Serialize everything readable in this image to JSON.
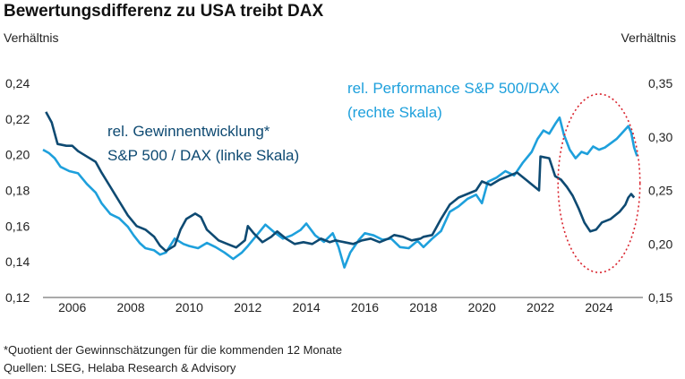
{
  "header": {
    "title": "Bewertungsdifferenz zu USA treibt DAX",
    "ylabel_left": "Verhältnis",
    "ylabel_right": "Verhältnis"
  },
  "footnotes": {
    "note": "*Quotient der Gewinnschätzungen für die kommenden 12 Monate",
    "source": "Quellen: LSEG, Helaba Research & Advisory"
  },
  "colors": {
    "earnings": "#0e4a72",
    "performance": "#1ea0dc",
    "ellipse": "#d9232d",
    "axis": "#555555"
  },
  "chart_data": {
    "type": "line",
    "y_left": {
      "range": [
        0.12,
        0.24
      ],
      "ticks": [
        "0,12",
        "0,14",
        "0,16",
        "0,18",
        "0,20",
        "0,22",
        "0,24"
      ]
    },
    "y_right": {
      "range": [
        0.15,
        0.35
      ],
      "ticks": [
        "0,15",
        "0,20",
        "0,25",
        "0,30",
        "0,35"
      ]
    },
    "x_range": [
      2005.0,
      2025.5
    ],
    "x_ticks": [
      {
        "x": 2006,
        "label": "2006"
      },
      {
        "x": 2008,
        "label": "2008"
      },
      {
        "x": 2010,
        "label": "2010"
      },
      {
        "x": 2012,
        "label": "2012"
      },
      {
        "x": 2014,
        "label": "2014"
      },
      {
        "x": 2016,
        "label": "2016"
      },
      {
        "x": 2018,
        "label": "2018"
      },
      {
        "x": 2020,
        "label": "2020"
      },
      {
        "x": 2022,
        "label": "2022"
      },
      {
        "x": 2024,
        "label": "2024"
      }
    ],
    "series": [
      {
        "name": "rel. Gewinnentwicklung* S&P 500 / DAX (linke Skala)",
        "label_lines": [
          "rel. Gewinnentwicklung*",
          "S&P 500 / DAX (linke Skala)"
        ],
        "axis": "left",
        "points": [
          [
            2005.1,
            0.224
          ],
          [
            2005.3,
            0.218
          ],
          [
            2005.5,
            0.206
          ],
          [
            2005.8,
            0.205
          ],
          [
            2006.0,
            0.205
          ],
          [
            2006.2,
            0.202
          ],
          [
            2006.5,
            0.199
          ],
          [
            2006.8,
            0.196
          ],
          [
            2007.0,
            0.19
          ],
          [
            2007.3,
            0.182
          ],
          [
            2007.6,
            0.174
          ],
          [
            2007.9,
            0.166
          ],
          [
            2008.2,
            0.16
          ],
          [
            2008.5,
            0.158
          ],
          [
            2008.8,
            0.154
          ],
          [
            2009.0,
            0.149
          ],
          [
            2009.2,
            0.146
          ],
          [
            2009.5,
            0.149
          ],
          [
            2009.7,
            0.158
          ],
          [
            2009.9,
            0.164
          ],
          [
            2010.2,
            0.167
          ],
          [
            2010.4,
            0.165
          ],
          [
            2010.6,
            0.158
          ],
          [
            2010.8,
            0.155
          ],
          [
            2011.0,
            0.152
          ],
          [
            2011.3,
            0.15
          ],
          [
            2011.6,
            0.148
          ],
          [
            2011.9,
            0.152
          ],
          [
            2012.0,
            0.16
          ],
          [
            2012.2,
            0.156
          ],
          [
            2012.5,
            0.151
          ],
          [
            2012.8,
            0.154
          ],
          [
            2013.0,
            0.157
          ],
          [
            2013.3,
            0.153
          ],
          [
            2013.6,
            0.15
          ],
          [
            2013.9,
            0.151
          ],
          [
            2014.2,
            0.15
          ],
          [
            2014.5,
            0.153
          ],
          [
            2014.8,
            0.151
          ],
          [
            2015.0,
            0.152
          ],
          [
            2015.3,
            0.151
          ],
          [
            2015.6,
            0.15
          ],
          [
            2015.9,
            0.152
          ],
          [
            2016.2,
            0.153
          ],
          [
            2016.5,
            0.151
          ],
          [
            2016.8,
            0.153
          ],
          [
            2017.0,
            0.155
          ],
          [
            2017.3,
            0.154
          ],
          [
            2017.6,
            0.152
          ],
          [
            2017.9,
            0.153
          ],
          [
            2018.0,
            0.154
          ],
          [
            2018.3,
            0.155
          ],
          [
            2018.6,
            0.164
          ],
          [
            2018.9,
            0.172
          ],
          [
            2019.2,
            0.176
          ],
          [
            2019.5,
            0.178
          ],
          [
            2019.8,
            0.18
          ],
          [
            2020.0,
            0.185
          ],
          [
            2020.3,
            0.183
          ],
          [
            2020.6,
            0.186
          ],
          [
            2020.9,
            0.188
          ],
          [
            2021.2,
            0.19
          ],
          [
            2021.5,
            0.186
          ],
          [
            2021.8,
            0.182
          ],
          [
            2021.95,
            0.18
          ],
          [
            2022.0,
            0.199
          ],
          [
            2022.3,
            0.198
          ],
          [
            2022.5,
            0.188
          ],
          [
            2022.7,
            0.186
          ],
          [
            2022.9,
            0.182
          ],
          [
            2023.1,
            0.177
          ],
          [
            2023.3,
            0.17
          ],
          [
            2023.5,
            0.162
          ],
          [
            2023.7,
            0.157
          ],
          [
            2023.9,
            0.158
          ],
          [
            2024.1,
            0.162
          ],
          [
            2024.4,
            0.164
          ],
          [
            2024.7,
            0.168
          ],
          [
            2024.9,
            0.172
          ],
          [
            2025.0,
            0.176
          ],
          [
            2025.1,
            0.178
          ],
          [
            2025.2,
            0.176
          ]
        ]
      },
      {
        "name": "rel. Performance S&P 500/DAX (rechte Skala)",
        "label_lines": [
          "rel. Performance S&P 500/DAX",
          "(rechte Skala)"
        ],
        "axis": "right",
        "points": [
          [
            2005.0,
            0.288
          ],
          [
            2005.2,
            0.285
          ],
          [
            2005.4,
            0.28
          ],
          [
            2005.6,
            0.272
          ],
          [
            2005.9,
            0.268
          ],
          [
            2006.2,
            0.266
          ],
          [
            2006.5,
            0.256
          ],
          [
            2006.8,
            0.248
          ],
          [
            2007.0,
            0.238
          ],
          [
            2007.3,
            0.228
          ],
          [
            2007.6,
            0.224
          ],
          [
            2007.9,
            0.216
          ],
          [
            2008.1,
            0.208
          ],
          [
            2008.3,
            0.201
          ],
          [
            2008.5,
            0.196
          ],
          [
            2008.8,
            0.194
          ],
          [
            2009.0,
            0.19
          ],
          [
            2009.2,
            0.192
          ],
          [
            2009.5,
            0.205
          ],
          [
            2009.8,
            0.2
          ],
          [
            2010.0,
            0.198
          ],
          [
            2010.3,
            0.196
          ],
          [
            2010.6,
            0.201
          ],
          [
            2010.9,
            0.197
          ],
          [
            2011.2,
            0.192
          ],
          [
            2011.5,
            0.186
          ],
          [
            2011.8,
            0.192
          ],
          [
            2012.0,
            0.198
          ],
          [
            2012.3,
            0.208
          ],
          [
            2012.6,
            0.218
          ],
          [
            2012.9,
            0.211
          ],
          [
            2013.2,
            0.205
          ],
          [
            2013.5,
            0.208
          ],
          [
            2013.8,
            0.213
          ],
          [
            2014.0,
            0.219
          ],
          [
            2014.3,
            0.208
          ],
          [
            2014.6,
            0.202
          ],
          [
            2014.9,
            0.21
          ],
          [
            2015.1,
            0.197
          ],
          [
            2015.3,
            0.178
          ],
          [
            2015.5,
            0.192
          ],
          [
            2015.8,
            0.204
          ],
          [
            2016.0,
            0.21
          ],
          [
            2016.3,
            0.208
          ],
          [
            2016.6,
            0.204
          ],
          [
            2016.9,
            0.205
          ],
          [
            2017.2,
            0.197
          ],
          [
            2017.5,
            0.196
          ],
          [
            2017.8,
            0.203
          ],
          [
            2018.0,
            0.197
          ],
          [
            2018.3,
            0.205
          ],
          [
            2018.6,
            0.212
          ],
          [
            2018.9,
            0.23
          ],
          [
            2019.2,
            0.235
          ],
          [
            2019.5,
            0.242
          ],
          [
            2019.8,
            0.246
          ],
          [
            2020.0,
            0.238
          ],
          [
            2020.2,
            0.258
          ],
          [
            2020.5,
            0.262
          ],
          [
            2020.8,
            0.268
          ],
          [
            2021.1,
            0.264
          ],
          [
            2021.4,
            0.276
          ],
          [
            2021.7,
            0.286
          ],
          [
            2021.9,
            0.298
          ],
          [
            2022.1,
            0.306
          ],
          [
            2022.3,
            0.303
          ],
          [
            2022.5,
            0.312
          ],
          [
            2022.65,
            0.318
          ],
          [
            2022.8,
            0.302
          ],
          [
            2023.0,
            0.288
          ],
          [
            2023.2,
            0.28
          ],
          [
            2023.4,
            0.286
          ],
          [
            2023.6,
            0.284
          ],
          [
            2023.8,
            0.291
          ],
          [
            2024.0,
            0.288
          ],
          [
            2024.2,
            0.29
          ],
          [
            2024.4,
            0.294
          ],
          [
            2024.6,
            0.298
          ],
          [
            2024.8,
            0.304
          ],
          [
            2025.0,
            0.31
          ],
          [
            2025.1,
            0.304
          ],
          [
            2025.2,
            0.29
          ],
          [
            2025.3,
            0.282
          ]
        ]
      }
    ],
    "annotation": {
      "shape": "ellipse",
      "style": "dotted",
      "center_x": 2024.0,
      "center_y_left": 0.184,
      "half_width_years": 1.4,
      "half_height_left": 0.05
    },
    "grid": false,
    "legend": "inline labels"
  }
}
